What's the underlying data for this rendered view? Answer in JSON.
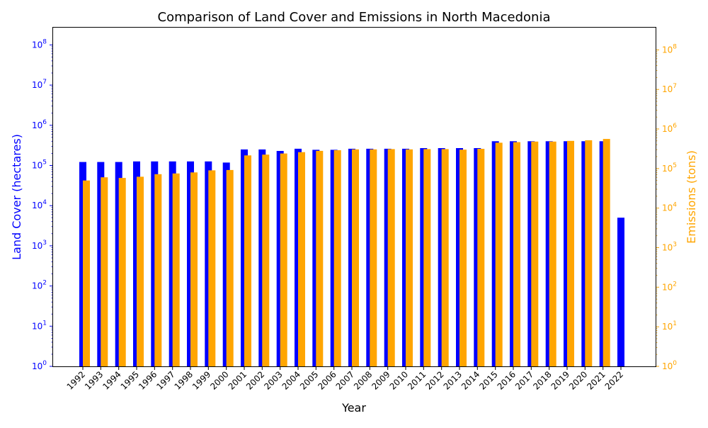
{
  "chart_data": {
    "type": "bar",
    "title": "Comparison of Land Cover and Emissions in North Macedonia",
    "xlabel": "Year",
    "ylabel_left": "Land Cover (hectares)",
    "ylabel_right": "Emissions (tons)",
    "y_scale": "log",
    "ylim_left": [
      1,
      280000000
    ],
    "ylim_right": [
      1,
      380000000
    ],
    "grid": false,
    "categories": [
      "1992",
      "1993",
      "1994",
      "1995",
      "1996",
      "1997",
      "1998",
      "1999",
      "2000",
      "2001",
      "2002",
      "2003",
      "2004",
      "2005",
      "2006",
      "2007",
      "2008",
      "2009",
      "2010",
      "2011",
      "2012",
      "2013",
      "2014",
      "2015",
      "2016",
      "2017",
      "2018",
      "2019",
      "2020",
      "2021",
      "2022"
    ],
    "series": [
      {
        "name": "Land Cover (hectares)",
        "axis": "left",
        "color": "#0000ff",
        "values": [
          122000,
          122000,
          122000,
          126000,
          126000,
          126000,
          126000,
          126000,
          118000,
          250000,
          250000,
          230000,
          260000,
          245000,
          245000,
          260000,
          260000,
          260000,
          260000,
          270000,
          270000,
          270000,
          270000,
          400000,
          400000,
          400000,
          400000,
          400000,
          400000,
          400000,
          5000
        ]
      },
      {
        "name": "Emissions (tons)",
        "axis": "right",
        "color": "#ffa500",
        "values": [
          50000,
          60000,
          58000,
          62000,
          72000,
          75000,
          80000,
          90000,
          92000,
          215000,
          225000,
          240000,
          260000,
          280000,
          290000,
          305000,
          305000,
          310000,
          305000,
          310000,
          310000,
          300000,
          315000,
          450000,
          465000,
          480000,
          480000,
          500000,
          520000,
          560000,
          null
        ]
      }
    ],
    "left_ticks": [
      "10^0",
      "10^1",
      "10^2",
      "10^3",
      "10^4",
      "10^5",
      "10^6",
      "10^7",
      "10^8"
    ],
    "right_ticks": [
      "10^0",
      "10^1",
      "10^2",
      "10^3",
      "10^4",
      "10^5",
      "10^6",
      "10^7",
      "10^8"
    ],
    "axis_colors": {
      "left": "#0000ff",
      "right": "#ffa500"
    }
  }
}
